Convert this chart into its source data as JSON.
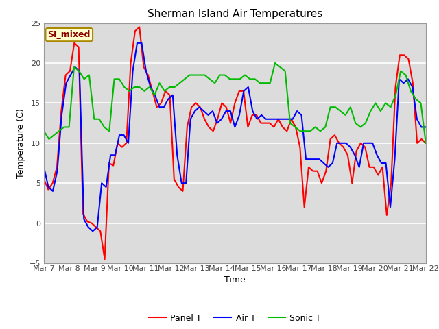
{
  "title": "Sherman Island Air Temperatures",
  "xlabel": "Time",
  "ylabel": "Temperature (C)",
  "ylim": [
    -5,
    25
  ],
  "yticks": [
    -5,
    0,
    5,
    10,
    15,
    20,
    25
  ],
  "annotation_text": "SI_mixed",
  "plot_bg_color": "#dcdcdc",
  "fig_bg": "#ffffff",
  "line_colors": {
    "panel": "#ff0000",
    "air": "#0000ff",
    "sonic": "#00bb00"
  },
  "legend_labels": [
    "Panel T",
    "Air T",
    "Sonic T"
  ],
  "x_tick_labels": [
    "Mar 7",
    "Mar 8",
    "Mar 9",
    "Mar 10",
    "Mar 11",
    "Mar 12",
    "Mar 13",
    "Mar 14",
    "Mar 15",
    "Mar 16",
    "Mar 17",
    "Mar 18",
    "Mar 19",
    "Mar 20",
    "Mar 21",
    "Mar 22"
  ],
  "panel_t": [
    5.5,
    4.2,
    5.0,
    7.0,
    14.0,
    18.5,
    19.0,
    22.5,
    22.0,
    1.2,
    0.2,
    0.0,
    -0.5,
    -1.0,
    -4.5,
    7.5,
    7.2,
    10.0,
    9.5,
    10.0,
    20.0,
    24.0,
    24.5,
    19.5,
    18.5,
    16.5,
    14.5,
    15.0,
    16.5,
    16.0,
    5.5,
    4.5,
    4.0,
    12.0,
    14.5,
    15.0,
    14.5,
    13.0,
    12.0,
    11.5,
    13.0,
    15.0,
    14.5,
    12.5,
    15.0,
    16.5,
    16.5,
    12.0,
    13.5,
    13.5,
    12.5,
    12.5,
    12.5,
    12.0,
    13.0,
    12.0,
    11.5,
    13.0,
    12.0,
    9.5,
    2.0,
    7.0,
    6.5,
    6.5,
    5.0,
    6.5,
    10.5,
    11.0,
    10.0,
    9.5,
    8.5,
    5.0,
    9.0,
    10.0,
    9.5,
    7.0,
    7.0,
    6.0,
    7.0,
    1.0,
    5.0,
    17.0,
    21.0,
    21.0,
    20.5,
    17.5,
    10.0,
    10.5,
    10.0
  ],
  "air_t": [
    7.0,
    4.5,
    4.0,
    6.5,
    13.5,
    17.5,
    18.5,
    19.5,
    19.0,
    0.5,
    -0.5,
    -1.0,
    -0.5,
    5.0,
    4.5,
    8.5,
    8.5,
    11.0,
    11.0,
    10.0,
    19.0,
    22.5,
    22.5,
    19.0,
    17.0,
    16.0,
    14.5,
    14.5,
    15.5,
    16.0,
    8.5,
    5.0,
    5.0,
    13.0,
    14.0,
    14.5,
    14.0,
    13.5,
    14.0,
    12.5,
    13.0,
    14.0,
    14.0,
    12.0,
    13.5,
    16.5,
    17.0,
    14.0,
    13.0,
    13.5,
    13.0,
    13.0,
    13.0,
    13.0,
    13.0,
    13.0,
    13.0,
    14.0,
    13.5,
    8.0,
    8.0,
    8.0,
    8.0,
    7.5,
    7.0,
    7.5,
    10.0,
    10.0,
    10.0,
    9.5,
    8.5,
    7.0,
    10.0,
    10.0,
    10.0,
    8.5,
    7.5,
    7.5,
    2.0,
    8.0,
    18.0,
    17.5,
    18.0,
    17.0,
    13.0,
    12.0,
    12.0
  ],
  "sonic_t": [
    11.5,
    10.5,
    11.0,
    11.5,
    12.0,
    12.0,
    19.5,
    19.0,
    18.0,
    18.5,
    13.0,
    13.0,
    12.0,
    11.5,
    18.0,
    18.0,
    17.0,
    16.5,
    17.0,
    17.0,
    16.5,
    17.0,
    16.0,
    17.5,
    16.5,
    17.0,
    17.0,
    17.5,
    18.0,
    18.5,
    18.5,
    18.5,
    18.5,
    18.0,
    17.5,
    18.5,
    18.5,
    18.0,
    18.0,
    18.0,
    18.5,
    18.0,
    18.0,
    17.5,
    17.5,
    17.5,
    20.0,
    19.5,
    19.0,
    12.5,
    12.0,
    11.5,
    11.5,
    11.5,
    12.0,
    11.5,
    12.0,
    14.5,
    14.5,
    14.0,
    13.5,
    14.5,
    12.5,
    12.0,
    12.5,
    14.0,
    15.0,
    14.0,
    15.0,
    14.5,
    16.0,
    19.0,
    18.5,
    16.5,
    15.5,
    15.0,
    10.0
  ]
}
